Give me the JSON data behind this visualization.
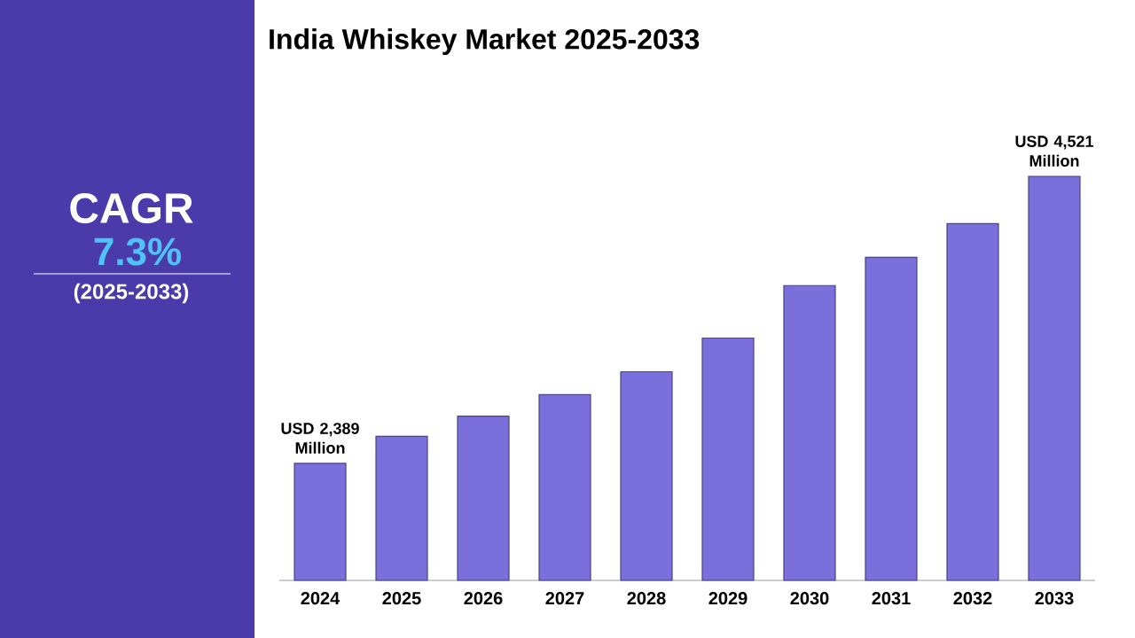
{
  "chart_data": {
    "type": "bar",
    "title": "India Whiskey Market 2025-2033",
    "categories": [
      "2024",
      "2025",
      "2026",
      "2027",
      "2028",
      "2029",
      "2030",
      "2031",
      "2032",
      "2033"
    ],
    "values": [
      2389,
      2590,
      2740,
      2900,
      3070,
      3320,
      3710,
      3920,
      4170,
      4521
    ],
    "color": "#7b6fdc",
    "ylim": [
      1520,
      4521
    ],
    "tick_labels": "x",
    "value_labels": [
      "USD 2,389 Million",
      null,
      null,
      null,
      null,
      null,
      null,
      null,
      null,
      "USD 4,521 Million"
    ],
    "annotations": [
      "CAGR",
      "7.3%",
      "(2025-2033)"
    ]
  }
}
